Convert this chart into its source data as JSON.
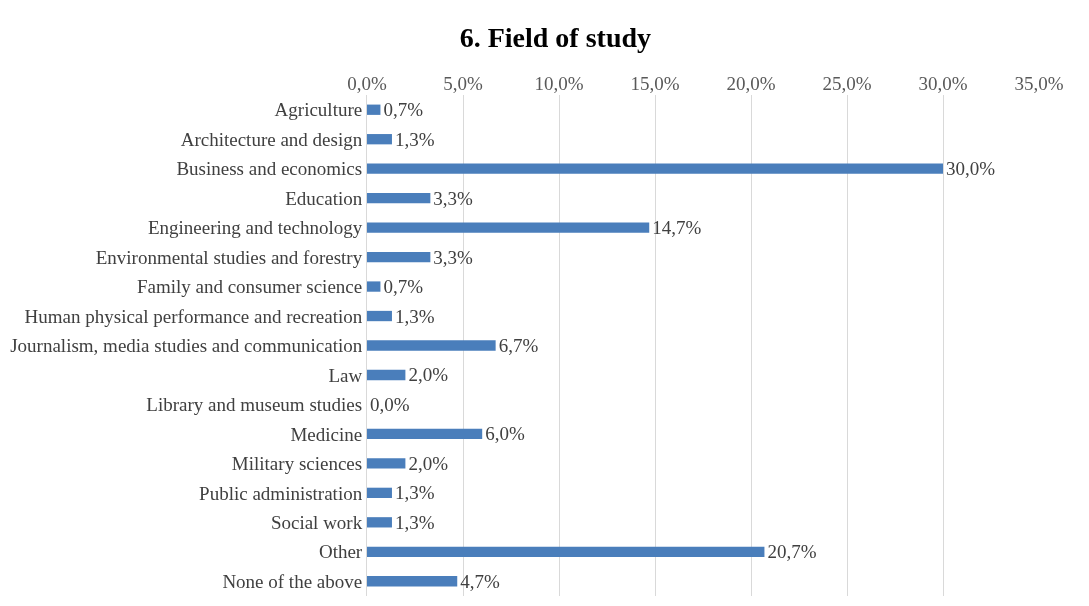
{
  "chart_data": {
    "type": "bar",
    "orientation": "horizontal",
    "title": "6. Field of study",
    "categories": [
      "Agriculture",
      "Architecture and design",
      "Business and economics",
      "Education",
      "Engineering and technology",
      "Environmental studies and forestry",
      "Family and consumer science",
      "Human physical performance and recreation",
      "Journalism, media studies and communication",
      "Law",
      "Library and museum studies",
      "Medicine",
      "Military sciences",
      "Public administration",
      "Social work",
      "Other",
      "None of the above"
    ],
    "values": [
      0.7,
      1.3,
      30.0,
      3.3,
      14.7,
      3.3,
      0.7,
      1.3,
      6.7,
      2.0,
      0.0,
      6.0,
      2.0,
      1.3,
      1.3,
      20.7,
      4.7
    ],
    "value_labels": [
      "0,7%",
      "1,3%",
      "30,0%",
      "3,3%",
      "14,7%",
      "3,3%",
      "0,7%",
      "1,3%",
      "6,7%",
      "2,0%",
      "0,0%",
      "6,0%",
      "2,0%",
      "1,3%",
      "1,3%",
      "20,7%",
      "4,7%"
    ],
    "color": "#4a7ebb",
    "xlim": [
      0,
      35
    ],
    "xticks": [
      {
        "value": 0,
        "label": "0,0%"
      },
      {
        "value": 5,
        "label": "5,0%"
      },
      {
        "value": 10,
        "label": "10,0%"
      },
      {
        "value": 15,
        "label": "15,0%"
      },
      {
        "value": 20,
        "label": "20,0%"
      },
      {
        "value": 25,
        "label": "25,0%"
      },
      {
        "value": 30,
        "label": "30,0%"
      },
      {
        "value": 35,
        "label": "35,0%"
      }
    ],
    "grid": "x",
    "legend": false
  }
}
